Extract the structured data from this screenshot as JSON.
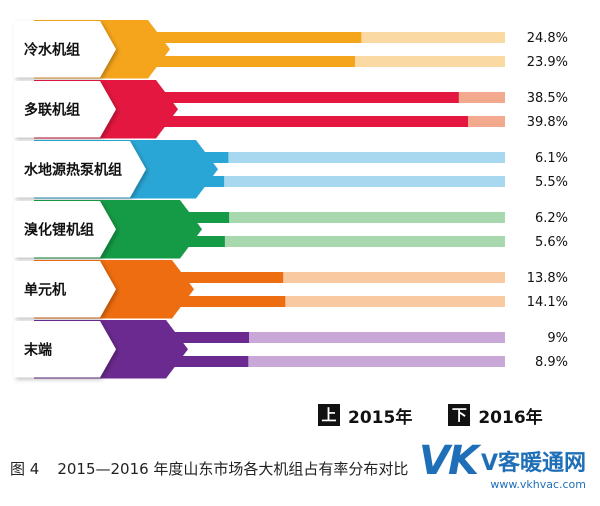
{
  "chart_data": {
    "type": "bar",
    "orientation": "horizontal",
    "categories": [
      "冷水机组",
      "多联机组",
      "水地源热泵机组",
      "溴化锂机组",
      "单元机",
      "末端"
    ],
    "series": [
      {
        "name": "2015年",
        "legend_key": "上",
        "values": [
          24.8,
          38.5,
          6.1,
          6.2,
          13.8,
          9
        ]
      },
      {
        "name": "2016年",
        "legend_key": "下",
        "values": [
          23.9,
          39.8,
          5.5,
          5.6,
          14.1,
          8.9
        ]
      }
    ],
    "value_labels": [
      [
        "24.8%",
        "23.9%"
      ],
      [
        "38.5%",
        "39.8%"
      ],
      [
        "6.1%",
        "5.5%"
      ],
      [
        "6.2%",
        "5.6%"
      ],
      [
        "13.8%",
        "14.1%"
      ],
      [
        "9%",
        "8.9%"
      ]
    ],
    "unit": "%",
    "colors": [
      "#f5a51c",
      "#e3173f",
      "#2aa6d6",
      "#159a45",
      "#ee6d10",
      "#6b2a8f"
    ],
    "light_colors": [
      "#fbd9a3",
      "#f2a98e",
      "#a7d8f0",
      "#a8d8ad",
      "#f9c9a2",
      "#c9a8d8"
    ],
    "legend_position": "bottom-right"
  },
  "caption": {
    "figure": "图 4",
    "text": "2015—2016 年度山东市场各大机组占有率分布对比"
  },
  "watermark": {
    "logo": "VK",
    "name": "V客暖通网",
    "url": "www.vkhvac.com"
  }
}
